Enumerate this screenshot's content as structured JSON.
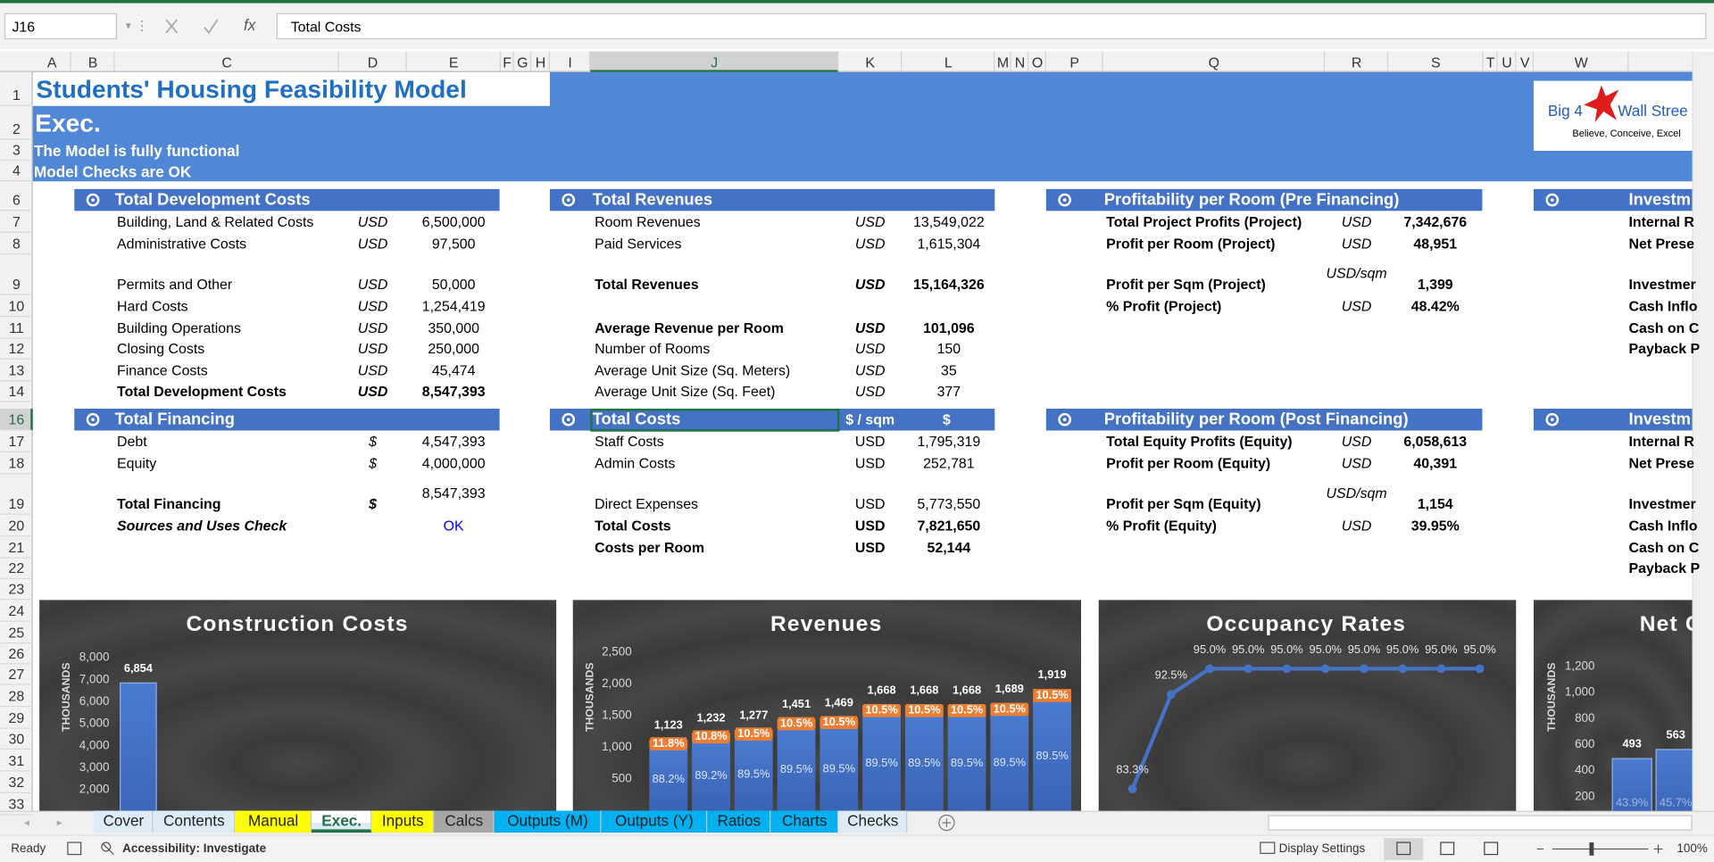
{
  "window": {
    "name_box": "J16",
    "formula": "Total Costs"
  },
  "columns": [
    "A",
    "B",
    "C",
    "D",
    "E",
    "F",
    "G",
    "H",
    "I",
    "J",
    "K",
    "L",
    "M",
    "N",
    "O",
    "P",
    "Q",
    "R",
    "S",
    "T",
    "U",
    "V",
    "W"
  ],
  "row_numbers": [
    1,
    2,
    3,
    4,
    6,
    7,
    8,
    9,
    10,
    11,
    12,
    13,
    14,
    16,
    17,
    18,
    19,
    20,
    21,
    22,
    23,
    24,
    25,
    26,
    27,
    28,
    29,
    30,
    31,
    32,
    33
  ],
  "header": {
    "title": "Students' Housing Feasibility Model",
    "subtitle": "Exec.",
    "note_1": "The Model is fully functional",
    "note_2": "Model Checks are OK"
  },
  "logo": {
    "name_left": "Big 4",
    "name_right": "Wall Stree",
    "tagline": "Believe, Conceive, Excel"
  },
  "sections": [
    {
      "title": "Total Development Costs",
      "items": [
        {
          "label": "Building, Land & Related Costs",
          "unit": "USD",
          "value": "6,500,000"
        },
        {
          "label": "Administrative Costs",
          "unit": "USD",
          "value": "97,500"
        },
        {
          "label": "Permits and Other",
          "unit": "USD",
          "value": "50,000"
        },
        {
          "label": "Hard Costs",
          "unit": "USD",
          "value": "1,254,419"
        },
        {
          "label": "Building Operations",
          "unit": "USD",
          "value": "350,000"
        },
        {
          "label": "Closing Costs",
          "unit": "USD",
          "value": "250,000"
        },
        {
          "label": "Finance Costs",
          "unit": "USD",
          "value": "45,474"
        },
        {
          "label": "Total Development Costs",
          "unit": "USD",
          "value": "8,547,393",
          "bold": [
            "label",
            "unit",
            "value"
          ]
        }
      ]
    },
    {
      "title": "Total Financing",
      "items": [
        {
          "label": "Debt",
          "unit": "$",
          "value": "4,547,393"
        },
        {
          "label": "Equity",
          "unit": "$",
          "value": "4,000,000"
        },
        {
          "label": "Total Financing",
          "unit": "$",
          "value": "8,547,393",
          "bold": [
            "label",
            "unit"
          ]
        },
        {
          "label": "Sources and Uses Check",
          "value": "OK",
          "bold": [
            "label"
          ],
          "italic_label": true,
          "value_color": "#0000ff"
        }
      ]
    },
    {
      "title": "Total Revenues",
      "items": [
        {
          "label": "Room Revenues",
          "unit": "USD",
          "value": "13,549,022"
        },
        {
          "label": "Paid Services",
          "unit": "USD",
          "value": "1,615,304"
        },
        {
          "label": "Total Revenues",
          "unit": "USD",
          "value": "15,164,326",
          "bold": [
            "label",
            "unit",
            "value"
          ]
        },
        {
          "label": "Average Revenue per Room",
          "unit": "USD",
          "value": "101,096",
          "bold": [
            "label",
            "unit",
            "value"
          ]
        },
        {
          "label": "Number of Rooms",
          "unit": "USD",
          "value": "150"
        },
        {
          "label": "Average Unit Size (Sq. Meters)",
          "unit": "USD",
          "value": "35"
        },
        {
          "label": "Average Unit Size (Sq. Feet)",
          "unit": "USD",
          "value": "377"
        }
      ]
    },
    {
      "title": "Total Costs",
      "unit_heading": "$ / sqm",
      "value_heading": "$",
      "items": [
        {
          "label": "Staff Costs",
          "unit": "USD",
          "value": "1,795,319"
        },
        {
          "label": "Admin Costs",
          "unit": "USD",
          "value": "252,781"
        },
        {
          "label": "Direct Expenses",
          "unit": "USD",
          "value": "5,773,550"
        },
        {
          "label": "Total Costs",
          "unit": "USD",
          "value": "7,821,650",
          "bold": [
            "label",
            "unit",
            "value"
          ]
        },
        {
          "label": "Costs per Room",
          "unit": "USD",
          "value": "52,144",
          "bold": [
            "label",
            "unit",
            "value"
          ]
        }
      ]
    },
    {
      "title": "Profitability per Room (Pre Financing)",
      "items": [
        {
          "label": "Total Project Profits (Project)",
          "unit": "USD",
          "value": "7,342,676",
          "bold": [
            "label",
            "value"
          ]
        },
        {
          "label": "Profit per Room (Project)",
          "unit": "USD",
          "value": "48,951",
          "bold": [
            "label",
            "value"
          ]
        },
        {
          "label": "Profit per Sqm (Project)",
          "unit": "USD/sqm",
          "value": "1,399",
          "bold": [
            "label",
            "value"
          ]
        },
        {
          "label": "% Profit (Project)",
          "unit": "USD",
          "value": "48.42%",
          "bold": [
            "label",
            "value"
          ]
        }
      ]
    },
    {
      "title": "Profitability per Room (Post Financing)",
      "items": [
        {
          "label": "Total Equity Profits (Equity)",
          "unit": "USD",
          "value": "6,058,613",
          "bold": [
            "label",
            "value"
          ]
        },
        {
          "label": "Profit per Room (Equity)",
          "unit": "USD",
          "value": "40,391",
          "bold": [
            "label",
            "value"
          ]
        },
        {
          "label": "Profit per Sqm (Equity)",
          "unit": "USD/sqm",
          "value": "1,154",
          "bold": [
            "label",
            "value"
          ]
        },
        {
          "label": "% Profit (Equity)",
          "unit": "USD",
          "value": "39.95%",
          "bold": [
            "label",
            "value"
          ]
        }
      ]
    }
  ],
  "side_panels": [
    {
      "title": "Investm",
      "labels": [
        "Internal R",
        "Net Prese",
        "Investmer",
        "Cash Inflo",
        "Cash on C",
        "Payback P"
      ]
    },
    {
      "title": "Investm",
      "labels": [
        "Internal R",
        "Net Prese",
        "Investmer",
        "Cash Inflo",
        "Cash on C",
        "Payback P"
      ]
    }
  ],
  "chart_data": [
    {
      "type": "bar",
      "title": "Construction Costs",
      "y_label": "THOUSANDS",
      "color": "#4472c4",
      "values": [
        6854
      ],
      "value_labels": [
        "6,854"
      ],
      "ylim": [
        0,
        8000
      ],
      "yticks": [
        {
          "value": 2000,
          "label": "2,000"
        },
        {
          "value": 3000,
          "label": "3,000"
        },
        {
          "value": 4000,
          "label": "4,000"
        },
        {
          "value": 5000,
          "label": "5,000"
        },
        {
          "value": 6000,
          "label": "6,000"
        },
        {
          "value": 7000,
          "label": "7,000"
        },
        {
          "value": 8000,
          "label": "8,000"
        }
      ]
    },
    {
      "type": "bar",
      "title": "Revenues",
      "y_label": "THOUSANDS",
      "ylim": [
        0,
        2500
      ],
      "yticks": [
        500,
        {
          "value": 1000,
          "label": "1,000"
        },
        {
          "value": 1500,
          "label": "1,500"
        },
        {
          "value": 2000,
          "label": "2,000"
        },
        {
          "value": 2500,
          "label": "2,500"
        }
      ],
      "series": [
        {
          "color": "#4472c4",
          "values": [
            990,
            1099,
            1143,
            1299,
            1315,
            1493,
            1493,
            1493,
            1512,
            1717
          ],
          "share_labels": [
            "88.2%",
            "89.2%",
            "89.5%",
            "89.5%",
            "89.5%",
            "89.5%",
            "89.5%",
            "89.5%",
            "89.5%",
            "89.5%"
          ]
        },
        {
          "color": "#ed7d31",
          "values": [
            133,
            133,
            134,
            152,
            154,
            175,
            175,
            175,
            177,
            202
          ],
          "share_labels": [
            "11.8%",
            "10.8%",
            "10.5%",
            "10.5%",
            "10.5%",
            "10.5%",
            "10.5%",
            "10.5%",
            "10.5%",
            "10.5%"
          ]
        }
      ],
      "total_labels": [
        "1,123",
        "1,232",
        "1,277",
        "1,451",
        "1,469",
        "1,668",
        "1,668",
        "1,668",
        "1,689",
        "1,919"
      ]
    },
    {
      "type": "line",
      "title": "Occupancy Rates",
      "color": "#4472c4",
      "values": [
        83.3,
        92.5,
        95,
        95,
        95,
        95,
        95,
        95,
        95,
        95
      ],
      "value_labels": [
        "83.3%",
        "92.5%",
        "95.0%",
        "95.0%",
        "95.0%",
        "95.0%",
        "95.0%",
        "95.0%",
        "95.0%",
        "95.0%"
      ]
    },
    {
      "type": "bar",
      "title": "Net C",
      "y_label": "THOUSANDS",
      "color": "#4472c4",
      "values": [
        493,
        563
      ],
      "share_labels": [
        "43.9%",
        "45.7%"
      ],
      "ylim": [
        0,
        1200
      ],
      "yticks": [
        200,
        400,
        600,
        800,
        {
          "value": 1000,
          "label": "1,000"
        },
        {
          "value": 1200,
          "label": "1,200"
        }
      ]
    }
  ],
  "sheet_tabs": [
    {
      "name": "Cover",
      "color": "#ddebf7"
    },
    {
      "name": "Contents",
      "color": "#ddebf7"
    },
    {
      "name": "Manual",
      "color": "#ffff00"
    },
    {
      "name": "Exec.",
      "color": "#ddebf7",
      "active": true
    },
    {
      "name": "Inputs",
      "color": "#ffff00"
    },
    {
      "name": "Calcs",
      "color": "#a6a6a6"
    },
    {
      "name": "Outputs (M)",
      "color": "#00b0f0"
    },
    {
      "name": "Outputs (Y)",
      "color": "#00b0f0"
    },
    {
      "name": "Ratios",
      "color": "#00b0f0"
    },
    {
      "name": "Charts",
      "color": "#00b0f0"
    },
    {
      "name": "Checks",
      "color": "#ddebf7"
    }
  ],
  "status_bar": {
    "mode": "Ready",
    "accessibility": "Accessibility: Investigate",
    "display_settings": "Display Settings",
    "zoom": "100%"
  }
}
